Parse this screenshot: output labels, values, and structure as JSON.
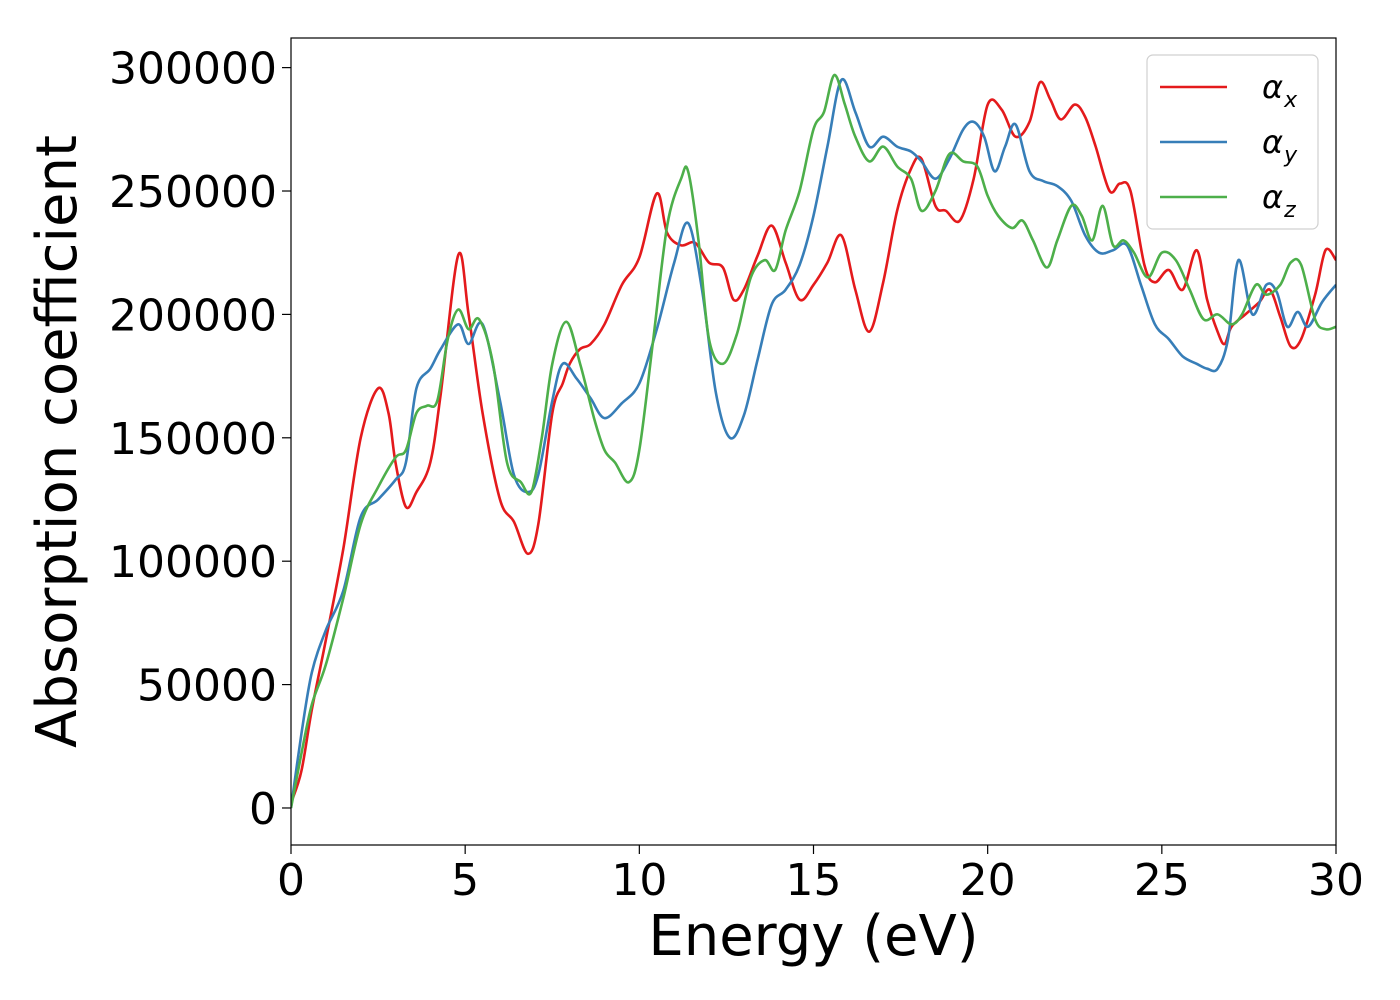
{
  "chart_data": {
    "type": "line",
    "xlabel": "Energy (eV)",
    "ylabel": "Absorption coefficient",
    "xlim": [
      0,
      30
    ],
    "ylim": [
      -15000,
      312000
    ],
    "xticks": [
      0,
      5,
      10,
      15,
      20,
      25,
      30
    ],
    "yticks": [
      0,
      50000,
      100000,
      150000,
      200000,
      250000,
      300000
    ],
    "grid": false,
    "legend_position": "top-right",
    "series": [
      {
        "name": "α",
        "subscript": "x",
        "color": "#e41a1c",
        "x": [
          0,
          0.3,
          0.6,
          1,
          1.5,
          2,
          2.5,
          2.8,
          3,
          3.3,
          3.6,
          4,
          4.3,
          4.8,
          5.1,
          5.5,
          6,
          6.4,
          6.8,
          7.1,
          7.5,
          7.8,
          8,
          8.3,
          8.6,
          9,
          9.5,
          10,
          10.5,
          10.8,
          11.2,
          11.6,
          12,
          12.4,
          12.7,
          13,
          13.4,
          13.8,
          14.2,
          14.6,
          15,
          15.4,
          15.8,
          16.2,
          16.6,
          17,
          17.4,
          17.8,
          18.1,
          18.5,
          18.8,
          19.2,
          19.6,
          20,
          20.4,
          20.8,
          21.2,
          21.5,
          21.8,
          22.1,
          22.5,
          22.8,
          23.1,
          23.5,
          23.8,
          24.1,
          24.5,
          24.8,
          25.2,
          25.6,
          26,
          26.3,
          26.6,
          26.8,
          27,
          27.4,
          27.8,
          28.1,
          28.4,
          28.7,
          29,
          29.4,
          29.7,
          30
        ],
        "y": [
          2000,
          15000,
          40000,
          68000,
          105000,
          150000,
          170000,
          160000,
          140000,
          122000,
          128000,
          140000,
          168000,
          224000,
          200000,
          160000,
          125000,
          116000,
          103000,
          115000,
          160000,
          172000,
          180000,
          186000,
          188000,
          196000,
          212000,
          223000,
          249000,
          233000,
          228000,
          229000,
          221000,
          219000,
          206000,
          210000,
          224000,
          236000,
          221000,
          206000,
          212000,
          221000,
          232000,
          210000,
          193000,
          213000,
          242000,
          259000,
          263000,
          244000,
          242000,
          238000,
          255000,
          285000,
          283000,
          272000,
          278000,
          294000,
          287000,
          279000,
          285000,
          280000,
          268000,
          250000,
          253000,
          250000,
          220000,
          213000,
          218000,
          210000,
          226000,
          206000,
          193000,
          188000,
          195000,
          200000,
          205000,
          210000,
          199000,
          187000,
          190000,
          208000,
          226000,
          222000
        ]
      },
      {
        "name": "α",
        "subscript": "y",
        "color": "#377eb8",
        "x": [
          0,
          0.3,
          0.6,
          1,
          1.5,
          2,
          2.5,
          3,
          3.3,
          3.6,
          4,
          4.3,
          4.8,
          5.1,
          5.5,
          6,
          6.4,
          6.8,
          7.1,
          7.5,
          7.8,
          8.2,
          8.6,
          9,
          9.5,
          10,
          10.5,
          11,
          11.4,
          11.8,
          12.2,
          12.6,
          13,
          13.4,
          13.8,
          14.2,
          14.6,
          15,
          15.4,
          15.8,
          16.2,
          16.6,
          17,
          17.4,
          17.8,
          18.1,
          18.5,
          18.9,
          19.3,
          19.6,
          19.9,
          20.2,
          20.5,
          20.8,
          21.2,
          21.6,
          22,
          22.4,
          22.8,
          23.2,
          23.6,
          24,
          24.4,
          24.8,
          25.2,
          25.6,
          26,
          26.3,
          26.6,
          26.9,
          27.2,
          27.6,
          28,
          28.3,
          28.6,
          28.9,
          29.2,
          29.6,
          30
        ],
        "y": [
          0,
          30000,
          55000,
          72000,
          88000,
          118000,
          125000,
          133000,
          140000,
          170000,
          178000,
          186000,
          196000,
          188000,
          196000,
          165000,
          135000,
          128000,
          135000,
          165000,
          180000,
          174000,
          166000,
          158000,
          164000,
          172000,
          194000,
          221000,
          237000,
          210000,
          168000,
          150000,
          159000,
          182000,
          204000,
          210000,
          220000,
          240000,
          268000,
          295000,
          282000,
          268000,
          272000,
          268000,
          266000,
          262000,
          255000,
          263000,
          275000,
          278000,
          272000,
          258000,
          268000,
          277000,
          258000,
          254000,
          252000,
          246000,
          232000,
          225000,
          226000,
          228000,
          212000,
          196000,
          190000,
          183000,
          180000,
          178000,
          178000,
          190000,
          222000,
          200000,
          212000,
          209000,
          195000,
          201000,
          195000,
          205000,
          212000
        ]
      },
      {
        "name": "α",
        "subscript": "z",
        "color": "#4daf4a",
        "x": [
          0,
          0.3,
          0.6,
          1,
          1.5,
          2,
          2.5,
          3,
          3.3,
          3.6,
          3.9,
          4.2,
          4.5,
          4.8,
          5.1,
          5.4,
          5.8,
          6.2,
          6.6,
          6.9,
          7.2,
          7.5,
          7.9,
          8.3,
          8.7,
          9,
          9.3,
          9.7,
          10,
          10.4,
          10.8,
          11.2,
          11.4,
          11.7,
          12,
          12.4,
          12.8,
          13.2,
          13.6,
          13.9,
          14.2,
          14.6,
          15,
          15.3,
          15.6,
          15.9,
          16.2,
          16.6,
          17,
          17.4,
          17.8,
          18.1,
          18.5,
          18.9,
          19.3,
          19.7,
          20,
          20.3,
          20.7,
          21,
          21.3,
          21.7,
          22,
          22.4,
          22.7,
          23,
          23.3,
          23.6,
          23.9,
          24.2,
          24.6,
          25,
          25.4,
          25.8,
          26.2,
          26.6,
          27,
          27.3,
          27.7,
          28,
          28.4,
          28.7,
          29,
          29.4,
          29.7,
          30
        ],
        "y": [
          0,
          22000,
          42000,
          58000,
          85000,
          115000,
          130000,
          142000,
          145000,
          160000,
          163000,
          165000,
          190000,
          202000,
          194000,
          198000,
          180000,
          140000,
          132000,
          128000,
          150000,
          180000,
          197000,
          180000,
          158000,
          145000,
          140000,
          132000,
          145000,
          190000,
          236000,
          255000,
          258000,
          230000,
          190000,
          180000,
          192000,
          215000,
          222000,
          218000,
          234000,
          250000,
          275000,
          282000,
          297000,
          285000,
          272000,
          262000,
          268000,
          260000,
          255000,
          242000,
          250000,
          265000,
          262000,
          260000,
          248000,
          240000,
          235000,
          238000,
          230000,
          219000,
          230000,
          244000,
          240000,
          230000,
          244000,
          228000,
          230000,
          225000,
          215000,
          225000,
          222000,
          210000,
          198000,
          200000,
          196000,
          200000,
          212000,
          208000,
          212000,
          221000,
          220000,
          198000,
          194000,
          195000
        ]
      }
    ]
  }
}
